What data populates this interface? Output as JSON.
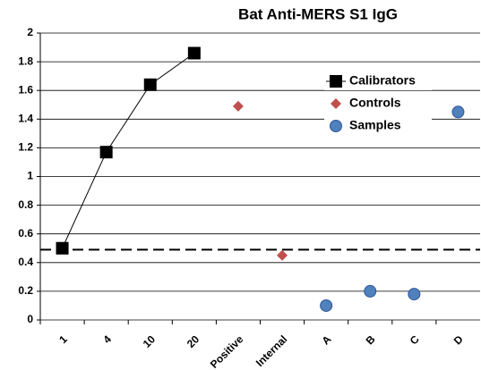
{
  "chart_data": {
    "type": "line",
    "title": "Bat Anti-MERS S1 IgG",
    "categories": [
      "1",
      "4",
      "10",
      "20",
      "Positive",
      "Internal",
      "A",
      "B",
      "C",
      "D"
    ],
    "series": [
      {
        "name": "Calibrators",
        "color": "#000000",
        "marker": "square",
        "line": true,
        "values": [
          0.5,
          1.17,
          1.64,
          1.86,
          null,
          null,
          null,
          null,
          null,
          null
        ]
      },
      {
        "name": "Controls",
        "color": "#c0504d",
        "marker": "diamond",
        "line": false,
        "values": [
          null,
          null,
          null,
          null,
          1.49,
          0.45,
          null,
          null,
          null,
          null
        ]
      },
      {
        "name": "Samples",
        "color": "#4f81bd",
        "marker": "circle",
        "line": false,
        "values": [
          null,
          null,
          null,
          null,
          null,
          null,
          0.1,
          0.2,
          0.18,
          1.45
        ]
      }
    ],
    "threshold": 0.49,
    "ylim": [
      0,
      2
    ],
    "yticks": [
      0,
      {
        "value": 0.2,
        "label": "0.2"
      },
      {
        "value": 0.4,
        "label": "0.4"
      },
      {
        "value": 0.6,
        "label": "0.6"
      },
      {
        "value": 0.8,
        "label": "0.8"
      },
      1,
      {
        "value": 1.2,
        "label": "1.2"
      },
      {
        "value": 1.4,
        "label": "1.4"
      },
      {
        "value": 1.6,
        "label": "1.6"
      },
      {
        "value": 1.8,
        "label": "1.8"
      },
      2
    ],
    "grid": true
  }
}
